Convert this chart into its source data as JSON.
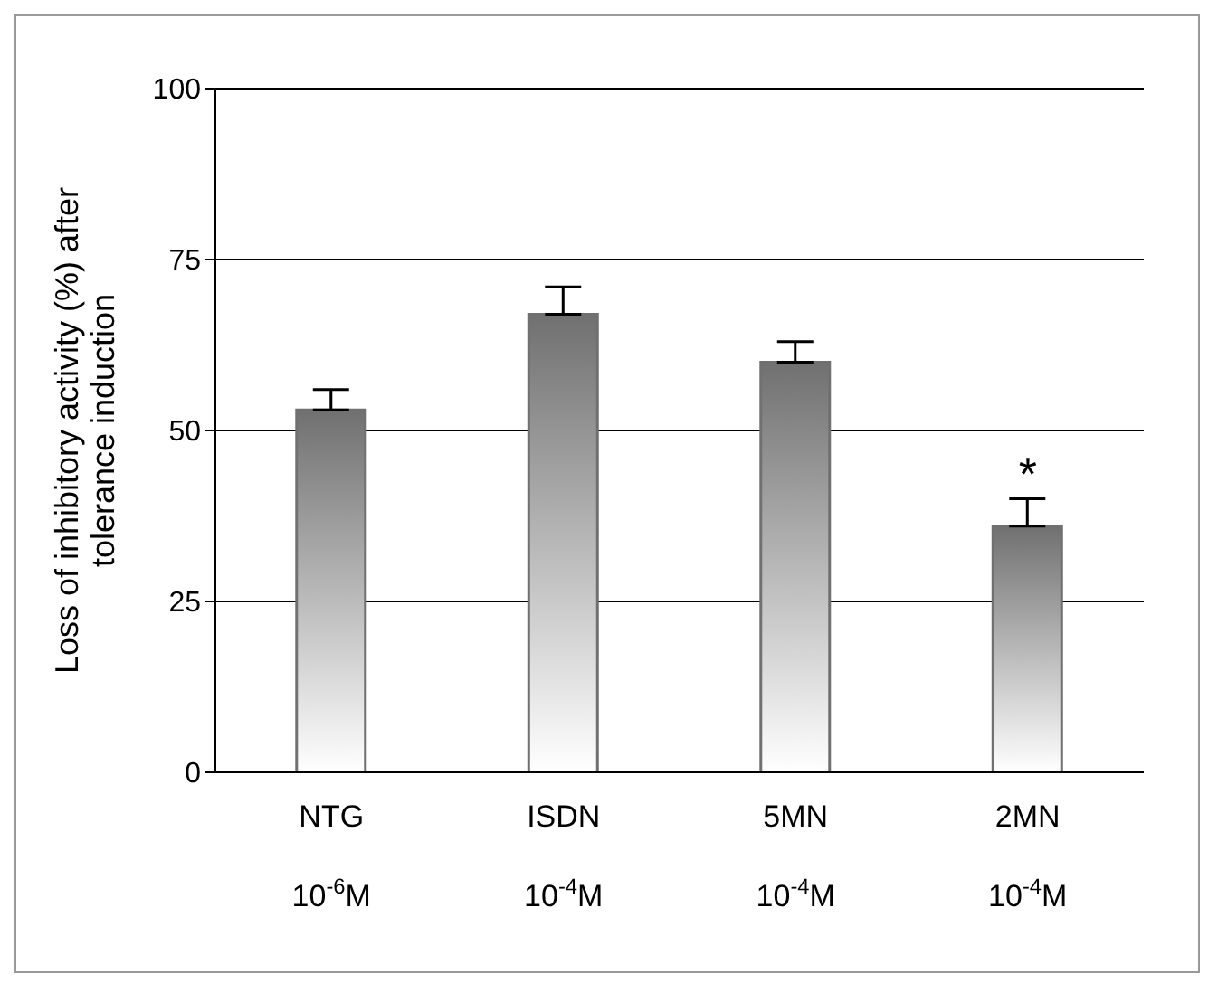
{
  "chart_data": {
    "type": "bar",
    "ylabel": "Loss of inhibitory activity (%) after tolerance induction",
    "categories": [
      "NTG\n10$^{-6}$M",
      "ISDN\n10$^{-4}$M",
      "5MN\n10$^{-4}$M",
      "2MN\n10$^{-4}$M"
    ],
    "values": [
      53,
      67,
      60,
      36
    ],
    "errors": [
      [
        53,
        56
      ],
      [
        67,
        71
      ],
      [
        60,
        63
      ],
      [
        36,
        40
      ]
    ],
    "color": "#707070",
    "ylim": [
      0,
      100
    ],
    "yticks": [
      0,
      25,
      50,
      75,
      100
    ],
    "grid": "y",
    "annotations": [
      {
        "text": "*",
        "x": "2MN\n10$^{-4}$M",
        "y": 40
      }
    ]
  }
}
